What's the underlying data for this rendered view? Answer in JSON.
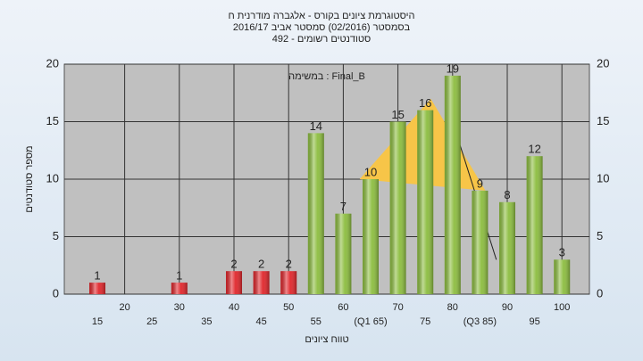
{
  "chart_data": {
    "type": "bar",
    "title": "היסטוגרמת ציונים בקורס - אלגברה מודרנית ח",
    "subtitle": "בסמסטר  (02/2016)  סמסטר אביב 2016/17",
    "subtitle2": "סטודנטים רשומים - 492",
    "annotation": "במשימה : Final_B",
    "y_label": "מספר סטודנטים",
    "x_label": "טווח ציונים",
    "categories": [
      "15",
      "20",
      "25",
      "30",
      "35",
      "40",
      "45",
      "50",
      "55",
      "60",
      "(Q1 65)",
      "70",
      "75",
      "80",
      "(Q3 85)",
      "90",
      "95",
      "100"
    ],
    "category_values": [
      15,
      20,
      25,
      30,
      35,
      40,
      45,
      50,
      55,
      60,
      65,
      70,
      75,
      80,
      85,
      90,
      95,
      100
    ],
    "values": [
      1,
      null,
      null,
      1,
      null,
      2,
      2,
      2,
      14,
      7,
      10,
      15,
      16,
      19,
      9,
      8,
      12,
      3
    ],
    "colors": [
      "#e0262b",
      null,
      null,
      "#e0262b",
      null,
      "#e0262b",
      "#e0262b",
      "#e0262b",
      "#8cbd3f",
      "#8cbd3f",
      "#8cbd3f",
      "#8cbd3f",
      "#8cbd3f",
      "#8cbd3f",
      "#8cbd3f",
      "#8cbd3f",
      "#8cbd3f",
      "#8cbd3f"
    ],
    "area": {
      "x": [
        63,
        76,
        86
      ],
      "y": [
        10,
        17,
        9
      ],
      "color": "#f7c548"
    },
    "line": {
      "x": [
        80,
        88
      ],
      "y": [
        15,
        3
      ],
      "color": "#222222"
    },
    "ylim": [
      0,
      20
    ],
    "yticks": [
      0,
      5,
      10,
      15,
      20
    ],
    "y2lim": [
      0,
      20
    ],
    "y2ticks": [
      0,
      5,
      10,
      15,
      20
    ],
    "grid": true
  }
}
